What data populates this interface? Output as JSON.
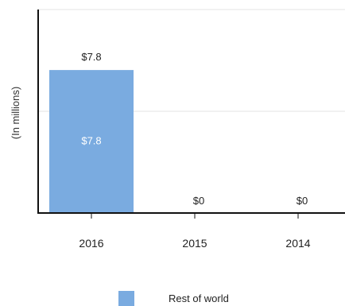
{
  "chart_data": {
    "type": "bar",
    "categories": [
      "2016",
      "2015",
      "2014"
    ],
    "series": [
      {
        "name": "Rest of world",
        "values": [
          7.8,
          0,
          0
        ],
        "color": "#7aabe0"
      }
    ],
    "value_labels": [
      "$7.8",
      "$0",
      "$0"
    ],
    "inner_labels": [
      "$7.8",
      "",
      ""
    ],
    "title": "",
    "xlabel": "",
    "ylabel": "(In millions)",
    "ylim": [
      0,
      11.1
    ],
    "grid": true,
    "legend_position": "bottom-center"
  }
}
